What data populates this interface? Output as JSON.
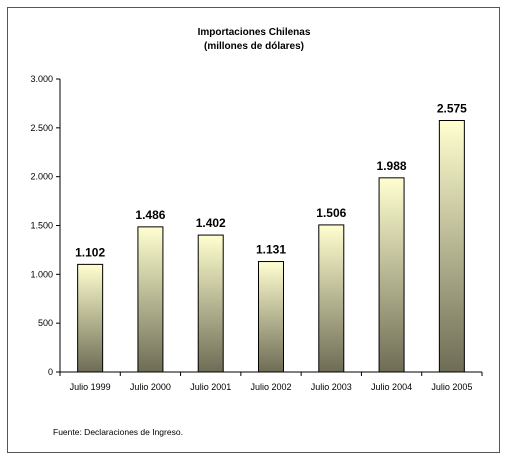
{
  "chart_data": {
    "type": "bar",
    "title": "Importaciones Chilenas",
    "subtitle": "(millones de dólares)",
    "categories": [
      "Julio 1999",
      "Julio 2000",
      "Julio 2001",
      "Julio 2002",
      "Julio 2003",
      "Julio 2004",
      "Julio 2005"
    ],
    "values": [
      1102,
      1486,
      1402,
      1131,
      1506,
      1988,
      2575
    ],
    "data_labels": [
      "1.102",
      "1.486",
      "1.402",
      "1.131",
      "1.506",
      "1.988",
      "2.575"
    ],
    "ylim": [
      0,
      3000
    ],
    "yticks": [
      0,
      500,
      1000,
      1500,
      2000,
      2500,
      3000
    ],
    "ytick_labels": [
      "0",
      "500",
      "1.000",
      "1.500",
      "2.000",
      "2.500",
      "3.000"
    ],
    "grid": false,
    "legend": "none",
    "bar_gradient": [
      "#ffffd0",
      "#6e6c55"
    ],
    "bar_border_color": "#000000"
  },
  "source_note": "Fuente: Declaraciones de Ingreso."
}
